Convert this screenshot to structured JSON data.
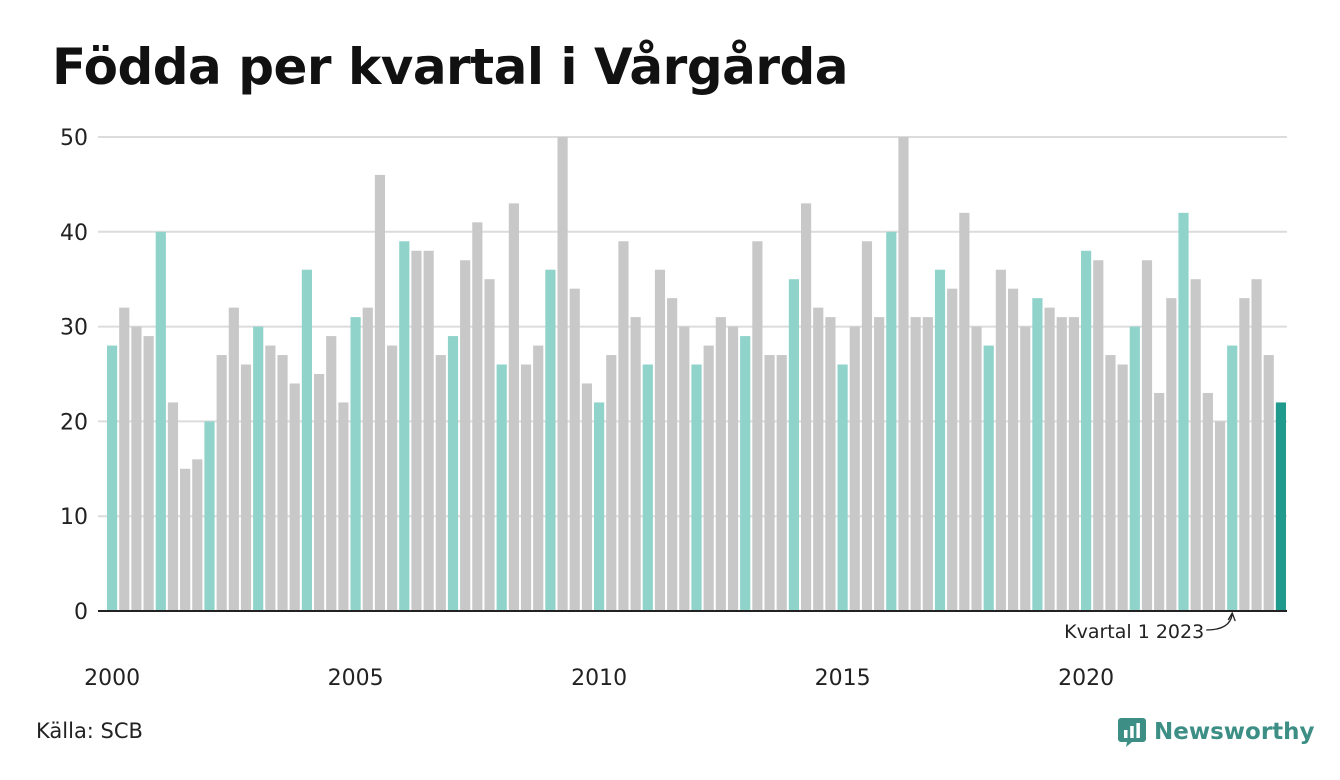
{
  "title": "Födda per kvartal i Vårgårda",
  "source": "Källa: SCB",
  "brand": {
    "name": "Newsworthy",
    "icon": "chart-speech-bubble-icon"
  },
  "colors": {
    "q1": "#8fd3cb",
    "other": "#c8c8c8",
    "latest": "#1f9a8c",
    "grid": "#dcdcdc",
    "axis": "#222222"
  },
  "chart_data": {
    "type": "bar",
    "title": "Födda per kvartal i Vårgårda",
    "xlabel": "",
    "ylabel": "",
    "ylim": [
      0,
      50
    ],
    "yticks": [
      0,
      10,
      20,
      30,
      40,
      50
    ],
    "xticks": [
      "2000",
      "2005",
      "2010",
      "2015",
      "2020"
    ],
    "start_year": 2000,
    "start_quarter": 1,
    "grid": "horizontal",
    "highlight": "Kvartal 1 bars highlighted; latest bar darker",
    "annotation": {
      "text": "Kvartal 1 2023",
      "target": "2023 Q1"
    },
    "values": [
      28,
      32,
      30,
      29,
      40,
      22,
      15,
      16,
      20,
      27,
      32,
      26,
      30,
      28,
      27,
      24,
      36,
      25,
      29,
      22,
      31,
      32,
      46,
      28,
      39,
      38,
      38,
      27,
      29,
      37,
      41,
      35,
      26,
      43,
      26,
      28,
      36,
      50,
      34,
      24,
      22,
      27,
      39,
      31,
      26,
      36,
      33,
      30,
      26,
      28,
      31,
      30,
      29,
      39,
      27,
      27,
      35,
      43,
      32,
      31,
      26,
      30,
      39,
      31,
      40,
      50,
      31,
      31,
      36,
      34,
      42,
      30,
      28,
      36,
      34,
      30,
      33,
      32,
      31,
      31,
      38,
      37,
      27,
      26,
      30,
      37,
      23,
      33,
      42,
      35,
      23,
      20,
      28,
      33,
      35,
      27,
      22
    ]
  }
}
